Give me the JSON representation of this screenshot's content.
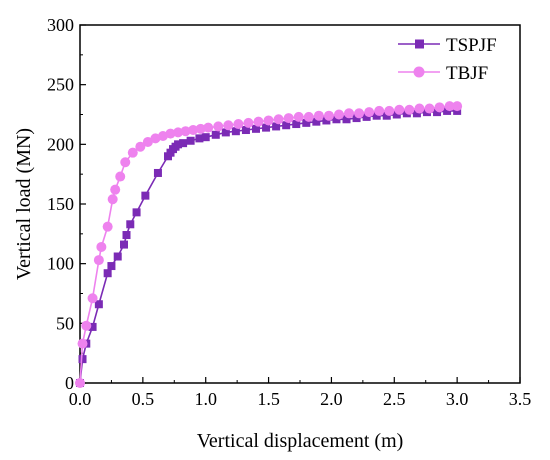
{
  "chart_data": {
    "type": "line",
    "xlabel": "Vertical displacement (m)",
    "ylabel": "Vertical load (MN)",
    "xlim": [
      0,
      3.5
    ],
    "ylim": [
      0,
      300
    ],
    "xticks": [
      0,
      0.5,
      1,
      1.5,
      2,
      2.5,
      3,
      3.5
    ],
    "yticks": [
      0,
      50,
      100,
      150,
      200,
      250,
      300
    ],
    "xtick_labels": [
      "0.0",
      "0.5",
      "1.0",
      "1.5",
      "2.0",
      "2.5",
      "3.0",
      "3.5"
    ],
    "ytick_labels": [
      "0",
      "50",
      "100",
      "150",
      "200",
      "250",
      "300"
    ],
    "grid": false,
    "legend": "top-right",
    "series": [
      {
        "name": "TSPJF",
        "color": "#7b2bb5",
        "marker": "square",
        "x": [
          0,
          0.02,
          0.05,
          0.1,
          0.15,
          0.22,
          0.25,
          0.3,
          0.35,
          0.37,
          0.4,
          0.45,
          0.52,
          0.62,
          0.7,
          0.72,
          0.74,
          0.76,
          0.78,
          0.82,
          0.88,
          0.95,
          1.0,
          1.08,
          1.16,
          1.24,
          1.32,
          1.4,
          1.48,
          1.56,
          1.64,
          1.72,
          1.8,
          1.88,
          1.96,
          2.04,
          2.12,
          2.2,
          2.28,
          2.36,
          2.44,
          2.52,
          2.6,
          2.68,
          2.76,
          2.84,
          2.92,
          3.0
        ],
        "y": [
          0,
          20,
          33,
          47,
          66,
          92,
          98,
          106,
          116,
          124,
          133,
          143,
          157,
          176,
          190,
          193,
          196,
          198,
          200,
          201,
          203,
          205,
          206,
          208,
          210,
          211,
          212,
          213,
          214,
          215,
          216,
          217,
          218,
          219,
          220,
          221,
          221,
          222,
          223,
          224,
          224,
          225,
          226,
          226,
          227,
          227,
          228,
          228
        ]
      },
      {
        "name": "TBJF",
        "color": "#ee82ee",
        "marker": "circle",
        "x": [
          0,
          0.02,
          0.05,
          0.1,
          0.15,
          0.17,
          0.22,
          0.26,
          0.28,
          0.32,
          0.36,
          0.42,
          0.48,
          0.54,
          0.6,
          0.66,
          0.72,
          0.78,
          0.84,
          0.9,
          0.96,
          1.02,
          1.1,
          1.18,
          1.26,
          1.34,
          1.42,
          1.5,
          1.58,
          1.66,
          1.74,
          1.82,
          1.9,
          1.98,
          2.06,
          2.14,
          2.22,
          2.3,
          2.38,
          2.46,
          2.54,
          2.62,
          2.7,
          2.78,
          2.86,
          2.94,
          3.0
        ],
        "y": [
          0,
          33,
          48,
          71,
          103,
          114,
          131,
          154,
          162,
          173,
          185,
          193,
          198,
          202,
          205,
          207,
          209,
          210,
          211,
          212,
          213,
          214,
          215,
          216,
          217,
          218,
          219,
          220,
          221,
          222,
          223,
          223,
          224,
          224,
          225,
          226,
          226,
          227,
          228,
          228,
          229,
          229,
          230,
          230,
          231,
          232,
          232
        ]
      }
    ]
  }
}
